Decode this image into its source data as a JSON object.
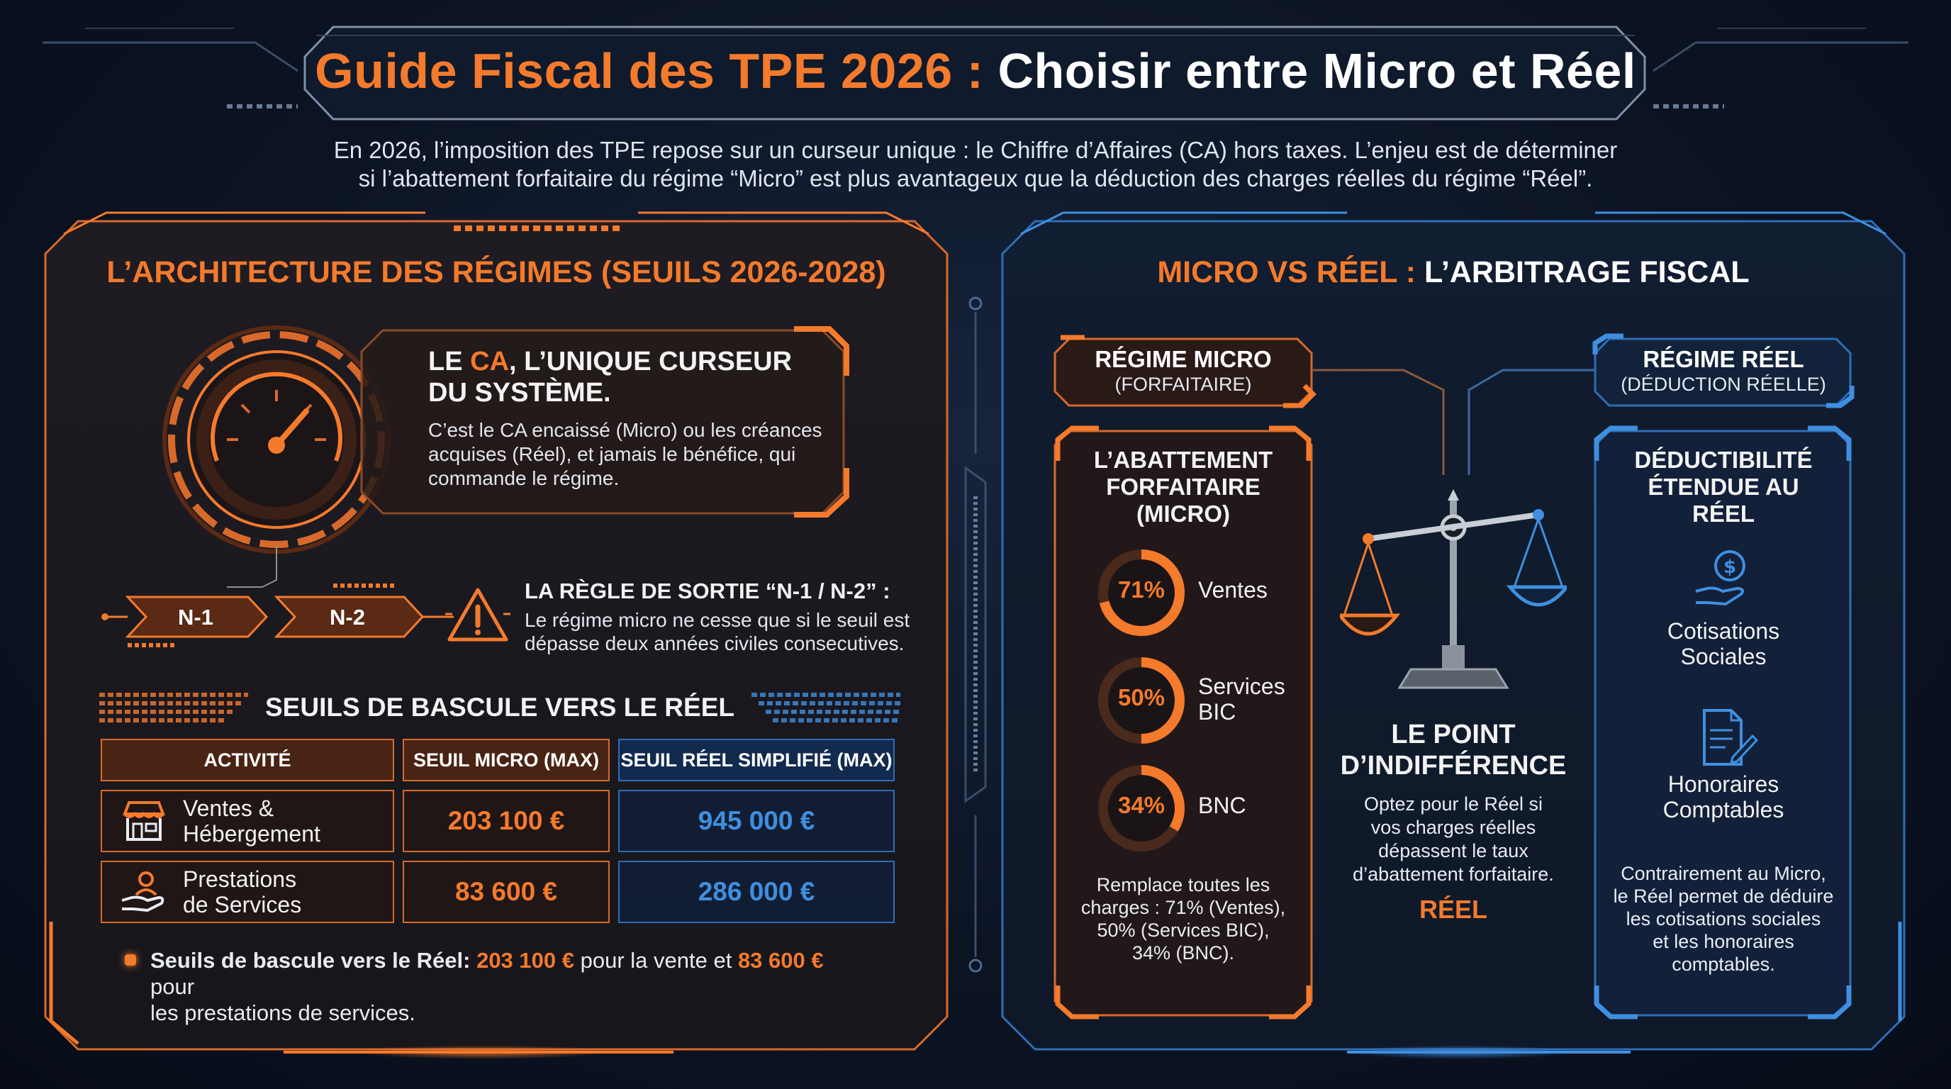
{
  "header": {
    "title_accent": "Guide Fiscal des TPE 2026 :",
    "title_main": "Choisir entre Micro et Réel",
    "intro_line1": "En 2026, l’imposition des TPE repose sur un curseur unique : le Chiffre d’Affaires (CA) hors taxes. L’enjeu est de déterminer",
    "intro_line2": "si l’abattement forfaitaire du régime “Micro” est plus avantageux que la déduction des charges réelles du régime “Réel”."
  },
  "left_panel": {
    "title": "L’ARCHITECTURE DES RÉGIMES (SEUILS 2026-2028)",
    "ca_box": {
      "title_prefix": "LE ",
      "title_accent": "CA",
      "title_suffix": ", L’UNIQUE CURSEUR",
      "title_line2": "DU SYSTÈME.",
      "text": "C’est le CA encaissé (Micro) ou les créances acquises (Réel), et jamais le bénéfice, qui commande le régime."
    },
    "years": [
      "N-1",
      "N-2"
    ],
    "rule": {
      "title": "LA RÈGLE DE SORTIE “N-1 / N-2” :",
      "text": "Le régime micro ne cesse que si le seuil est dépasse deux années civiles consecutives."
    },
    "thresholds": {
      "title": "SEUILS DE BASCULE VERS LE RÉEL",
      "headers": [
        "ACTIVITÉ",
        "SEUIL MICRO (MAX)",
        "SEUIL RÉEL SIMPLIFIÉ (MAX)"
      ],
      "rows": [
        {
          "activity_l1": "Ventes &",
          "activity_l2": "Hébergement",
          "micro": "203 100 €",
          "reel": "945 000 €",
          "icon": "store-icon"
        },
        {
          "activity_l1": "Prestations",
          "activity_l2": "de Services",
          "micro": "83 600 €",
          "reel": "286 000 €",
          "icon": "service-hand-icon"
        }
      ]
    },
    "note": {
      "bold1": "Seuils de bascule vers le Réel:",
      "val1": "203 100 €",
      "mid": " pour la vente et ",
      "val2": "83 600 €",
      "end": " pour",
      "line2": "les prestations de services."
    }
  },
  "right_panel": {
    "title_accent": "MICRO VS RÉEL :",
    "title_main": "L’ARBITRAGE FISCAL",
    "micro": {
      "head": "RÉGIME MICRO",
      "sub": "(FORFAITAIRE)",
      "box_title_l1": "L’ABATTEMENT",
      "box_title_l2": "FORFAITAIRE",
      "box_title_l3": "(MICRO)",
      "rates": [
        {
          "pct": "71%",
          "value": 71,
          "label_l1": "Ventes",
          "label_l2": ""
        },
        {
          "pct": "50%",
          "value": 50,
          "label_l1": "Services",
          "label_l2": "BIC"
        },
        {
          "pct": "34%",
          "value": 34,
          "label_l1": "BNC",
          "label_l2": ""
        }
      ],
      "text_lines": [
        "Remplace toutes les",
        "charges : 71% (Ventes),",
        "50% (Services BIC),",
        "34% (BNC)."
      ]
    },
    "center": {
      "title_l1": "LE POINT",
      "title_l2": "D’INDIFFÉRENCE",
      "text_lines": [
        "Optez pour le Réel si",
        "vos charges réelles",
        "dépassent le taux",
        "d’abattement forfaitaire."
      ],
      "result": "RÉEL"
    },
    "reel": {
      "head": "RÉGIME RÉEL",
      "sub": "(DÉDUCTION RÉELLE)",
      "box_title_l1": "DÉDUCTIBILITÉ",
      "box_title_l2": "ÉTENDUE AU",
      "box_title_l3": "RÉEL",
      "item1_l1": "Cotisations",
      "item1_l2": "Sociales",
      "item2_l1": "Honoraires",
      "item2_l2": "Comptables",
      "text_lines": [
        "Contrairement au Micro,",
        "le Réel permet de déduire",
        "les cotisations sociales",
        "et les honoraires",
        "comptables."
      ]
    }
  },
  "colors": {
    "accent_orange": "#f47a2c",
    "accent_blue": "#3f8fe0",
    "background": "#0c1424"
  }
}
